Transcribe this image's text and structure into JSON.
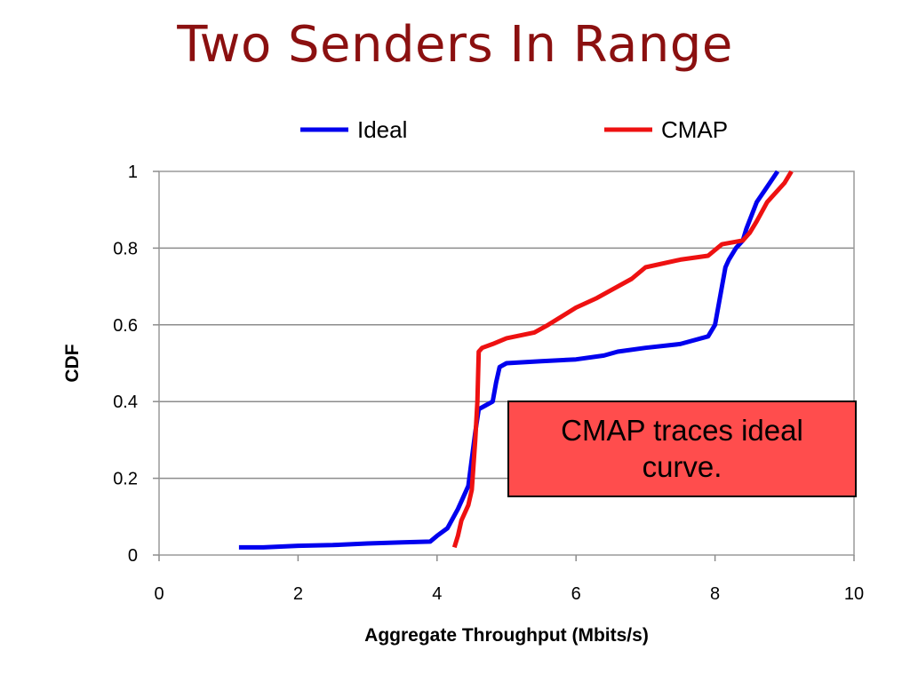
{
  "slide": {
    "title": "Two Senders In Range"
  },
  "callout": {
    "text": "CMAP traces ideal curve."
  },
  "colors": {
    "title": "#8b1010",
    "ideal": "#0000ee",
    "cmap": "#ee1111",
    "callout_fill": "#ff4d4d"
  },
  "chart_data": {
    "type": "line",
    "xlabel": "Aggregate Throughput (Mbits/s)",
    "ylabel": "CDF",
    "xlim": [
      0,
      10
    ],
    "ylim": [
      0,
      1
    ],
    "xticks": [
      "0",
      "2",
      "4",
      "6",
      "8",
      "10"
    ],
    "yticks": [
      "0",
      "0.2",
      "0.4",
      "0.6",
      "0.8",
      "1"
    ],
    "grid": "horizontal",
    "legend": "top",
    "series": [
      {
        "name": "Ideal",
        "x": [
          1.15,
          1.5,
          2.0,
          2.5,
          3.0,
          3.5,
          3.9,
          4.0,
          4.15,
          4.3,
          4.45,
          4.5,
          4.55,
          4.6,
          4.7,
          4.8,
          4.85,
          4.9,
          5.0,
          5.5,
          6.0,
          6.4,
          6.6,
          7.0,
          7.5,
          7.9,
          8.0,
          8.1,
          8.15,
          8.2,
          8.3,
          8.4,
          8.45,
          8.6,
          8.75,
          8.9
        ],
        "y": [
          0.02,
          0.02,
          0.024,
          0.026,
          0.03,
          0.033,
          0.035,
          0.05,
          0.07,
          0.12,
          0.18,
          0.25,
          0.32,
          0.38,
          0.39,
          0.4,
          0.45,
          0.49,
          0.5,
          0.505,
          0.51,
          0.52,
          0.53,
          0.54,
          0.55,
          0.57,
          0.6,
          0.7,
          0.75,
          0.77,
          0.8,
          0.82,
          0.85,
          0.92,
          0.96,
          1.0
        ]
      },
      {
        "name": "CMAP",
        "x": [
          4.25,
          4.3,
          4.35,
          4.45,
          4.5,
          4.55,
          4.58,
          4.6,
          4.65,
          4.8,
          5.0,
          5.4,
          5.6,
          6.0,
          6.3,
          6.5,
          6.8,
          7.0,
          7.5,
          7.9,
          8.1,
          8.4,
          8.5,
          8.6,
          8.75,
          9.0,
          9.1
        ],
        "y": [
          0.02,
          0.05,
          0.09,
          0.13,
          0.17,
          0.3,
          0.4,
          0.53,
          0.54,
          0.55,
          0.565,
          0.58,
          0.6,
          0.645,
          0.67,
          0.69,
          0.72,
          0.75,
          0.77,
          0.78,
          0.81,
          0.82,
          0.84,
          0.87,
          0.92,
          0.97,
          1.0
        ]
      }
    ]
  }
}
